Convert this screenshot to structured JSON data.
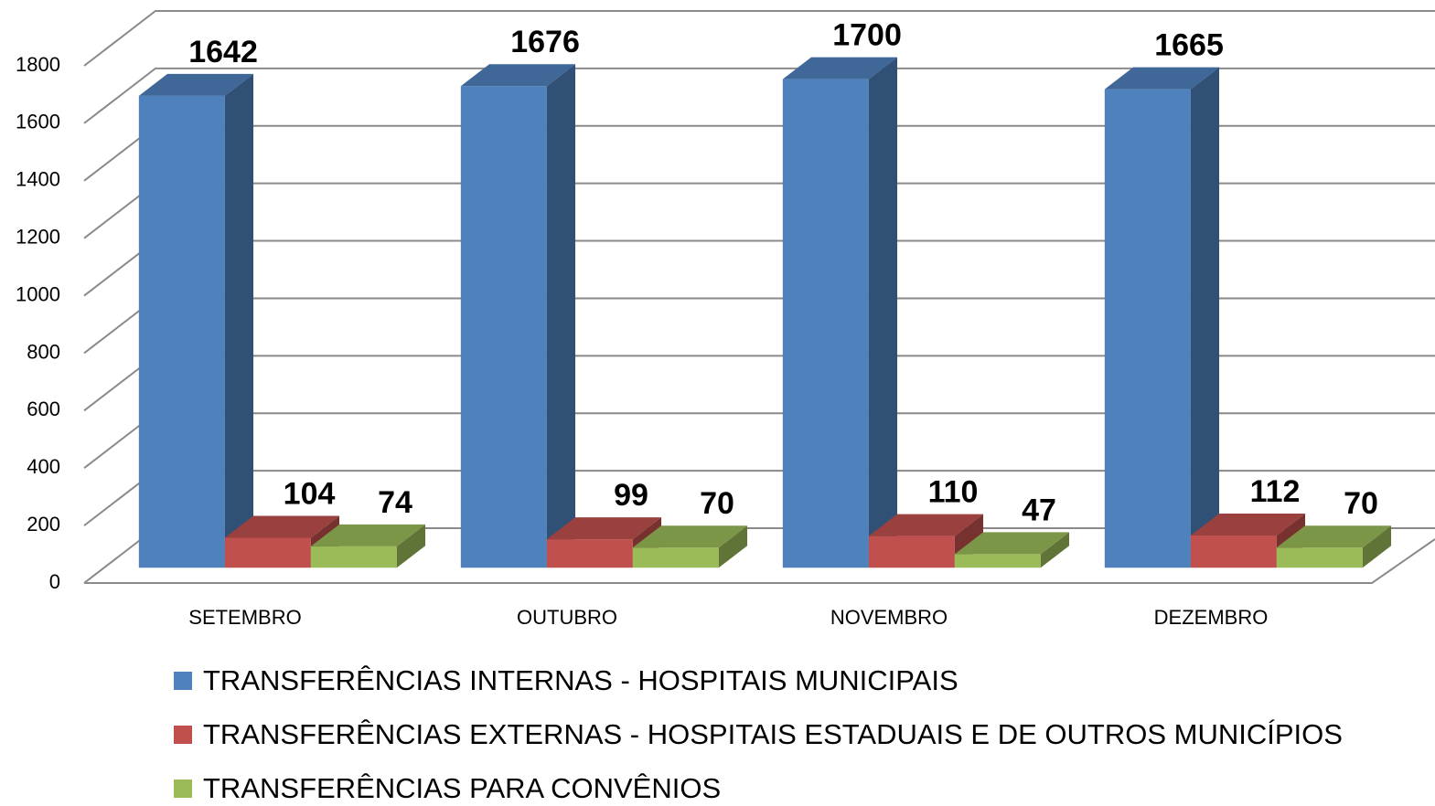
{
  "chart_data": {
    "type": "bar3d",
    "categories": [
      "SETEMBRO",
      "OUTUBRO",
      "NOVEMBRO",
      "DEZEMBRO"
    ],
    "series": [
      {
        "name": "TRANSFERÊNCIAS INTERNAS - HOSPITAIS MUNICIPAIS",
        "color": "#4f81bd",
        "values": [
          1642,
          1676,
          1700,
          1665
        ]
      },
      {
        "name": "TRANSFERÊNCIAS EXTERNAS - HOSPITAIS ESTADUAIS E DE OUTROS MUNICÍPIOS",
        "color": "#c0504d",
        "values": [
          104,
          99,
          110,
          112
        ]
      },
      {
        "name": "TRANSFERÊNCIAS PARA CONVÊNIOS",
        "color": "#9bbb59",
        "values": [
          74,
          70,
          47,
          70
        ]
      }
    ],
    "ylim": [
      0,
      1800
    ],
    "yticks": [
      0,
      200,
      400,
      600,
      800,
      1000,
      1200,
      1400,
      1600,
      1800
    ],
    "grid": true,
    "legend": "bottom"
  }
}
